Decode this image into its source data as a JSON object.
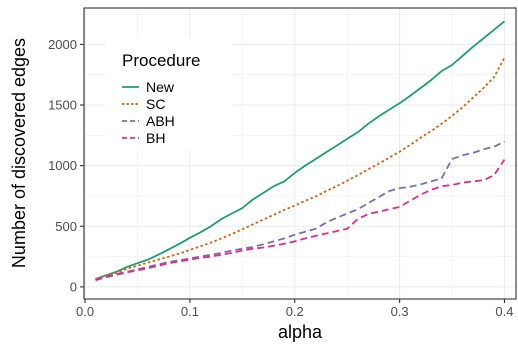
{
  "chart_data": {
    "type": "line",
    "xlabel": "alpha",
    "ylabel": "Number of discovered edges",
    "xlim": [
      -0.001,
      0.411
    ],
    "ylim": [
      -100,
      2300
    ],
    "xticks": [
      0.0,
      0.1,
      0.2,
      0.3,
      0.4
    ],
    "xtick_labels": [
      "0.0",
      "0.1",
      "0.2",
      "0.3",
      "0.4"
    ],
    "yticks": [
      0,
      500,
      1000,
      1500,
      2000
    ],
    "ytick_labels": [
      "0",
      "500",
      "1000",
      "1500",
      "2000"
    ],
    "grid": true,
    "legend": {
      "title": "Procedure",
      "placement": "top-left inside"
    },
    "x": [
      0.01,
      0.02,
      0.03,
      0.04,
      0.05,
      0.06,
      0.07,
      0.08,
      0.09,
      0.1,
      0.11,
      0.12,
      0.13,
      0.14,
      0.15,
      0.16,
      0.17,
      0.18,
      0.19,
      0.2,
      0.21,
      0.22,
      0.23,
      0.24,
      0.25,
      0.26,
      0.27,
      0.28,
      0.29,
      0.3,
      0.31,
      0.32,
      0.33,
      0.34,
      0.35,
      0.36,
      0.37,
      0.38,
      0.39,
      0.4
    ],
    "series": [
      {
        "name": "New",
        "color": "#1b9e77",
        "dash": "solid",
        "values": [
          65,
          95,
          125,
          165,
          195,
          225,
          265,
          310,
          355,
          405,
          450,
          500,
          560,
          605,
          650,
          720,
          775,
          830,
          870,
          940,
          1000,
          1055,
          1110,
          1165,
          1220,
          1275,
          1345,
          1405,
          1460,
          1515,
          1575,
          1640,
          1705,
          1780,
          1830,
          1905,
          1980,
          2050,
          2120,
          2190
        ]
      },
      {
        "name": "SC",
        "color": "#d95f02",
        "dash": "dotted",
        "values": [
          65,
          95,
          115,
          150,
          175,
          200,
          225,
          250,
          275,
          305,
          335,
          365,
          400,
          435,
          475,
          515,
          555,
          595,
          635,
          670,
          710,
          745,
          790,
          830,
          875,
          920,
          970,
          1015,
          1065,
          1115,
          1170,
          1230,
          1285,
          1345,
          1410,
          1480,
          1560,
          1640,
          1730,
          1890
        ]
      },
      {
        "name": "ABH",
        "color": "#7570b3",
        "dash": "dashed",
        "values": [
          60,
          85,
          105,
          125,
          145,
          165,
          185,
          205,
          220,
          235,
          250,
          265,
          280,
          300,
          315,
          330,
          350,
          375,
          400,
          430,
          455,
          480,
          530,
          570,
          605,
          640,
          690,
          740,
          790,
          815,
          825,
          845,
          870,
          895,
          1055,
          1085,
          1105,
          1135,
          1155,
          1200
        ]
      },
      {
        "name": "BH",
        "color": "#e7298a",
        "dash": "dashed",
        "values": [
          55,
          80,
          100,
          120,
          135,
          155,
          175,
          195,
          210,
          225,
          240,
          250,
          265,
          280,
          300,
          315,
          325,
          340,
          355,
          375,
          400,
          420,
          440,
          460,
          480,
          560,
          600,
          620,
          640,
          660,
          710,
          760,
          800,
          830,
          840,
          860,
          870,
          880,
          920,
          1050
        ]
      }
    ]
  }
}
